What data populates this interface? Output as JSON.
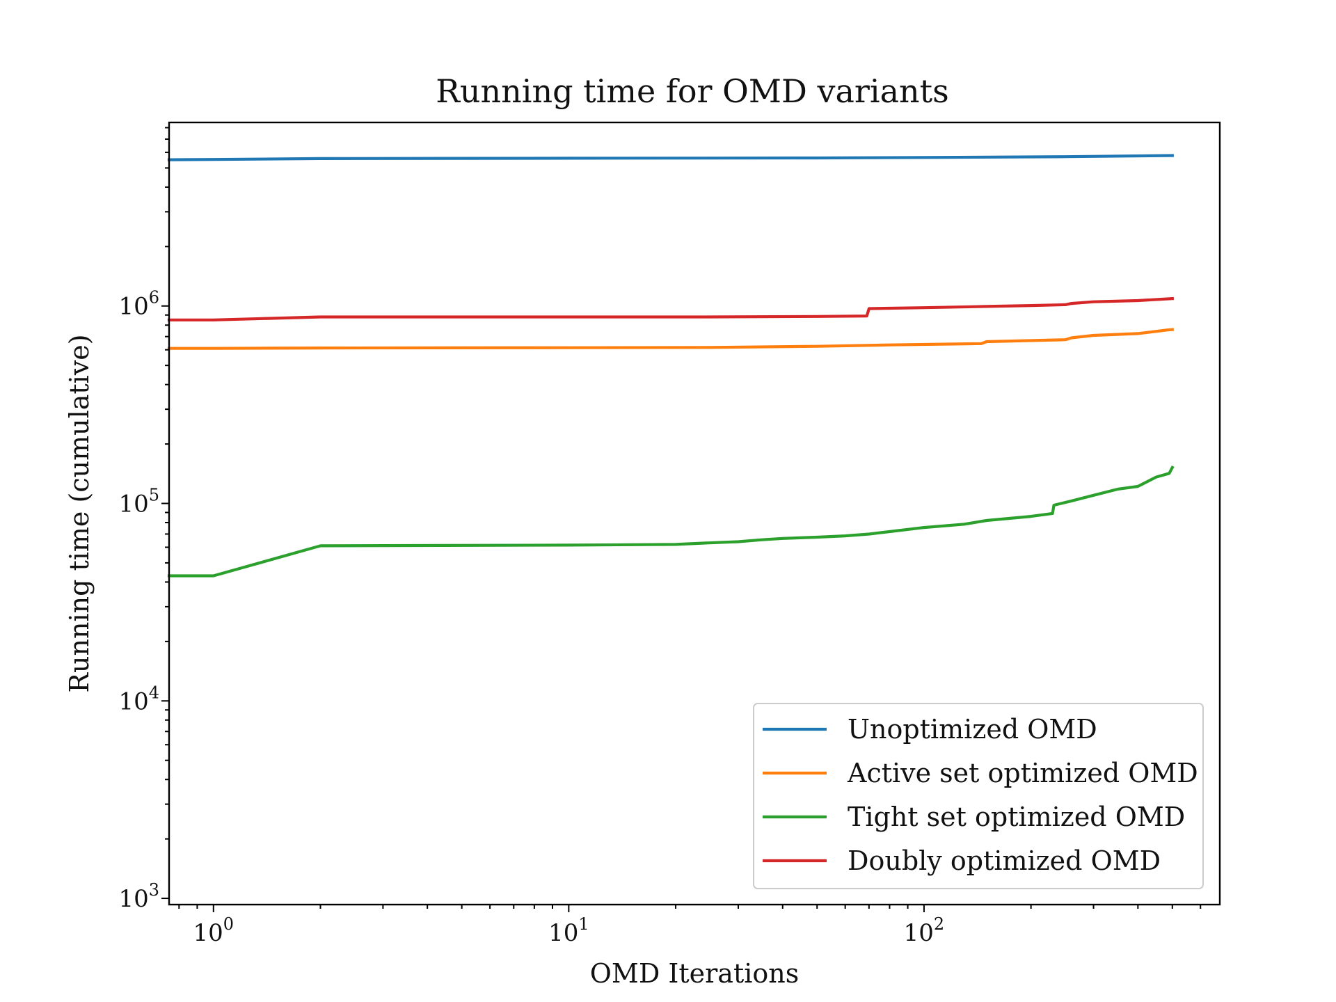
{
  "chart_data": {
    "type": "line",
    "title": "Running time for OMD variants",
    "xlabel": "OMD Iterations",
    "ylabel": "Running time (cumulative)",
    "xscale": "log",
    "yscale": "log",
    "xlim": [
      0.75,
      680
    ],
    "ylim": [
      930,
      8500000
    ],
    "x_tick_labels": [
      {
        "base": "10",
        "exp": "0"
      },
      {
        "base": "10",
        "exp": "1"
      },
      {
        "base": "10",
        "exp": "2"
      }
    ],
    "y_tick_labels": [
      {
        "base": "10",
        "exp": "3"
      },
      {
        "base": "10",
        "exp": "4"
      },
      {
        "base": "10",
        "exp": "5"
      },
      {
        "base": "10",
        "exp": "6"
      }
    ],
    "grid": false,
    "legend_position": "lower-right",
    "series": [
      {
        "name": "Unoptimized OMD",
        "color": "#1f77b4",
        "x": [
          0.75,
          1,
          2,
          10,
          50,
          100,
          250,
          500
        ],
        "y": [
          5500000,
          5520000,
          5580000,
          5600000,
          5620000,
          5650000,
          5700000,
          5780000
        ]
      },
      {
        "name": "Active set optimized OMD",
        "color": "#ff7f0e",
        "x": [
          0.75,
          1,
          2,
          10,
          25,
          50,
          80,
          145,
          150,
          250,
          260,
          300,
          400,
          480,
          500
        ],
        "y": [
          610000,
          610000,
          613000,
          615000,
          617000,
          625000,
          635000,
          645000,
          660000,
          675000,
          690000,
          710000,
          725000,
          755000,
          760000
        ]
      },
      {
        "name": "Tight set optimized OMD",
        "color": "#2ca02c",
        "x": [
          0.75,
          1,
          2,
          10,
          20,
          24,
          30,
          35,
          40,
          50,
          60,
          70,
          80,
          100,
          130,
          150,
          200,
          230,
          232,
          260,
          300,
          350,
          400,
          450,
          490,
          500
        ],
        "y": [
          43000,
          43000,
          61000,
          61500,
          62000,
          63000,
          64000,
          65500,
          66500,
          67500,
          68500,
          70000,
          72000,
          75500,
          78500,
          82000,
          86000,
          89000,
          98000,
          103000,
          110000,
          118000,
          122000,
          136000,
          142000,
          152000
        ]
      },
      {
        "name": "Doubly optimized OMD",
        "color": "#d62728",
        "x": [
          0.75,
          1,
          2,
          10,
          24,
          50,
          69,
          70,
          100,
          150,
          200,
          250,
          260,
          300,
          400,
          500
        ],
        "y": [
          850000,
          850000,
          880000,
          880000,
          880000,
          885000,
          890000,
          970000,
          980000,
          995000,
          1005000,
          1015000,
          1030000,
          1050000,
          1065000,
          1090000
        ]
      }
    ]
  }
}
